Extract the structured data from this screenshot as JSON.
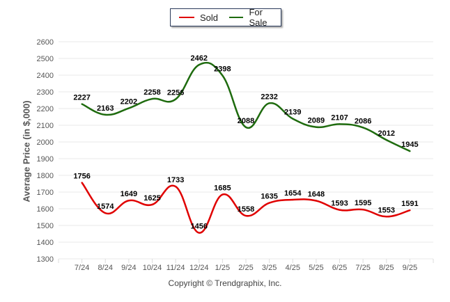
{
  "legend": {
    "sold_label": "Sold",
    "forsale_label": "For Sale"
  },
  "colors": {
    "sold": "#e00000",
    "forsale": "#1e6b0e",
    "grid": "#e8e8e8",
    "tick_text": "#555555"
  },
  "footer": {
    "copyright": "Copyright © Trendgraphix, Inc."
  },
  "chart_data": {
    "type": "line",
    "title": "",
    "xlabel": "",
    "ylabel": "Average Price (in $,000)",
    "ylim": [
      1300,
      2600
    ],
    "yticks": [
      1300,
      1400,
      1500,
      1600,
      1700,
      1800,
      1900,
      2000,
      2100,
      2200,
      2300,
      2400,
      2500,
      2600
    ],
    "grid": true,
    "legend_position": "top-center",
    "smooth": true,
    "categories": [
      "7/24",
      "8/24",
      "9/24",
      "10/24",
      "11/24",
      "12/24",
      "1/25",
      "2/25",
      "3/25",
      "4/25",
      "5/25",
      "6/25",
      "7/25",
      "8/25",
      "9/25"
    ],
    "series": [
      {
        "name": "Sold",
        "color": "#e00000",
        "values": [
          1756,
          1574,
          1649,
          1625,
          1733,
          1456,
          1685,
          1558,
          1635,
          1654,
          1648,
          1593,
          1595,
          1553,
          1591
        ]
      },
      {
        "name": "For Sale",
        "color": "#1e6b0e",
        "values": [
          2227,
          2163,
          2202,
          2258,
          2256,
          2462,
          2398,
          2088,
          2232,
          2139,
          2089,
          2107,
          2086,
          2012,
          1945
        ]
      }
    ]
  }
}
